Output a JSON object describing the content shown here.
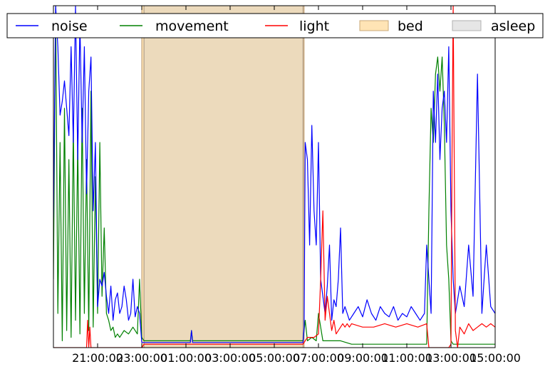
{
  "chart_data": {
    "type": "line",
    "x_unit": "hours since 19:00 (clock time of day)",
    "xlim": [
      0,
      20
    ],
    "ylim": [
      0,
      100
    ],
    "x_ticks": [
      {
        "x": 2,
        "label": "21:00:00"
      },
      {
        "x": 4,
        "label": "23:00:00"
      },
      {
        "x": 6,
        "label": "01:00:00"
      },
      {
        "x": 8,
        "label": "03:00:00"
      },
      {
        "x": 10,
        "label": "05:00:00"
      },
      {
        "x": 12,
        "label": "07:00:00"
      },
      {
        "x": 14,
        "label": "09:00:00"
      },
      {
        "x": 16,
        "label": "11:00:00"
      },
      {
        "x": 18,
        "label": "13:00:00"
      },
      {
        "x": 20,
        "label": "15:00:00"
      }
    ],
    "grid": false,
    "legend_position": "top",
    "legend": [
      {
        "label": "noise",
        "kind": "line",
        "color": "#0000ff"
      },
      {
        "label": "movement",
        "kind": "line",
        "color": "#008000"
      },
      {
        "label": "light",
        "kind": "line",
        "color": "#ff0000"
      },
      {
        "label": "bed",
        "kind": "patch",
        "color": "#ffe4b5",
        "edge": "#c8a878"
      },
      {
        "label": "asleep",
        "kind": "patch",
        "color": "#e6e6e6",
        "edge": "#b0b0b0"
      }
    ],
    "spans": [
      {
        "name": "bed",
        "start": 4.0,
        "end": 11.35,
        "color": "#ffe4b5",
        "edge": "#b8956a"
      },
      {
        "name": "asleep",
        "start": 4.1,
        "end": 11.3,
        "color": "#c8c8c8",
        "edge": "#a09080"
      }
    ],
    "series": [
      {
        "name": "noise",
        "color": "#0000ff",
        "x": [
          0,
          0.1,
          0.2,
          0.3,
          0.4,
          0.5,
          0.6,
          0.7,
          0.8,
          0.9,
          1.0,
          1.1,
          1.2,
          1.3,
          1.4,
          1.5,
          1.6,
          1.7,
          1.8,
          1.9,
          2.0,
          2.1,
          2.2,
          2.3,
          2.4,
          2.5,
          2.6,
          2.7,
          2.8,
          2.9,
          3.0,
          3.1,
          3.2,
          3.3,
          3.4,
          3.5,
          3.6,
          3.7,
          3.8,
          3.9,
          4.0,
          4.1,
          4.5,
          5.0,
          5.5,
          6.0,
          6.2,
          6.25,
          6.3,
          6.5,
          7.0,
          8.0,
          9.0,
          10.0,
          11.0,
          11.3,
          11.35,
          11.4,
          11.5,
          11.6,
          11.7,
          11.8,
          11.9,
          12.0,
          12.1,
          12.2,
          12.3,
          12.4,
          12.5,
          12.6,
          12.7,
          12.8,
          12.9,
          13.0,
          13.1,
          13.2,
          13.4,
          13.6,
          13.8,
          14.0,
          14.2,
          14.4,
          14.6,
          14.8,
          15.0,
          15.2,
          15.4,
          15.6,
          15.8,
          16.0,
          16.2,
          16.4,
          16.6,
          16.8,
          16.9,
          17.0,
          17.1,
          17.2,
          17.3,
          17.4,
          17.5,
          17.6,
          17.7,
          17.8,
          17.9,
          18.0,
          18.1,
          18.2,
          18.4,
          18.6,
          18.8,
          19.0,
          19.2,
          19.4,
          19.6,
          19.8,
          20.0
        ],
        "y": [
          38,
          100,
          88,
          68,
          72,
          78,
          70,
          62,
          88,
          60,
          100,
          55,
          95,
          60,
          88,
          45,
          75,
          85,
          40,
          60,
          12,
          20,
          18,
          22,
          15,
          10,
          18,
          8,
          14,
          16,
          10,
          12,
          18,
          14,
          8,
          10,
          20,
          9,
          12,
          10,
          1.5,
          1.5,
          1.5,
          1.5,
          1.5,
          1.5,
          1.5,
          5,
          1.5,
          1.5,
          1.5,
          1.5,
          1.5,
          1.5,
          1.5,
          1.5,
          6,
          60,
          55,
          30,
          65,
          40,
          30,
          60,
          20,
          15,
          10,
          18,
          30,
          8,
          14,
          12,
          20,
          35,
          10,
          12,
          8,
          10,
          12,
          9,
          14,
          10,
          8,
          12,
          10,
          9,
          12,
          8,
          10,
          9,
          12,
          10,
          8,
          10,
          30,
          20,
          10,
          75,
          60,
          80,
          55,
          70,
          75,
          60,
          88,
          40,
          20,
          10,
          18,
          12,
          30,
          15,
          80,
          10,
          30,
          12,
          10
        ]
      },
      {
        "name": "movement",
        "color": "#008000",
        "x": [
          0,
          0.1,
          0.2,
          0.3,
          0.4,
          0.5,
          0.6,
          0.7,
          0.8,
          0.9,
          1.0,
          1.1,
          1.2,
          1.3,
          1.4,
          1.5,
          1.6,
          1.7,
          1.8,
          1.9,
          2.0,
          2.1,
          2.2,
          2.3,
          2.4,
          2.5,
          2.6,
          2.7,
          2.8,
          2.9,
          3.0,
          3.2,
          3.4,
          3.6,
          3.8,
          3.9,
          4.0,
          4.1,
          4.5,
          5.0,
          5.5,
          6.0,
          6.2,
          6.25,
          6.3,
          6.5,
          7.0,
          8.0,
          9.0,
          10.0,
          11.0,
          11.3,
          11.4,
          11.5,
          11.7,
          11.9,
          12.0,
          12.2,
          12.5,
          13.0,
          13.5,
          14.0,
          14.5,
          15.0,
          15.5,
          16.0,
          16.5,
          16.9,
          17.0,
          17.1,
          17.2,
          17.3,
          17.4,
          17.5,
          17.6,
          17.7,
          17.8,
          17.9,
          18.0,
          18.1,
          18.3,
          18.6,
          19.0,
          19.5,
          20.0
        ],
        "y": [
          20,
          100,
          10,
          60,
          2,
          70,
          5,
          55,
          3,
          65,
          8,
          60,
          4,
          70,
          10,
          55,
          5,
          75,
          6,
          50,
          10,
          60,
          15,
          35,
          10,
          8,
          5,
          6,
          3,
          4,
          3,
          5,
          4,
          6,
          4,
          20,
          3,
          2,
          2,
          2,
          2,
          2,
          2,
          5,
          2,
          2,
          2,
          2,
          2,
          2,
          2,
          2,
          8,
          2,
          3,
          2,
          10,
          2,
          2,
          2,
          1,
          1,
          1,
          1,
          1,
          1,
          1,
          1,
          40,
          70,
          60,
          80,
          85,
          75,
          85,
          65,
          30,
          20,
          2,
          1,
          1,
          1,
          1,
          1,
          1
        ]
      },
      {
        "name": "light",
        "color": "#ff0000",
        "x": [
          0,
          1.5,
          1.55,
          1.6,
          1.65,
          1.7,
          2.0,
          3.0,
          4.0,
          4.1,
          5.0,
          6.0,
          7.0,
          8.0,
          9.0,
          10.0,
          11.0,
          11.3,
          11.4,
          11.5,
          11.8,
          12.0,
          12.1,
          12.2,
          12.3,
          12.4,
          12.5,
          12.6,
          12.7,
          12.8,
          13.0,
          13.1,
          13.2,
          13.3,
          13.4,
          13.5,
          14.0,
          14.5,
          15.0,
          15.5,
          16.0,
          16.5,
          16.9,
          17.0,
          17.5,
          17.8,
          17.9,
          18.0,
          18.05,
          18.1,
          18.2,
          18.3,
          18.4,
          18.6,
          18.8,
          19.0,
          19.2,
          19.4,
          19.6,
          19.8,
          20.0
        ],
        "y": [
          0,
          0,
          8,
          0,
          6,
          0,
          0,
          0,
          0,
          1,
          1,
          1,
          1,
          1,
          1,
          1,
          1,
          1,
          2,
          3,
          3,
          4,
          20,
          40,
          8,
          15,
          10,
          5,
          8,
          4,
          6,
          7,
          6,
          7,
          6,
          7,
          6,
          6,
          7,
          6,
          7,
          6,
          7,
          0,
          0,
          0,
          0,
          1,
          60,
          100,
          5,
          0,
          6,
          4,
          7,
          5,
          6,
          7,
          6,
          7,
          6
        ]
      }
    ]
  }
}
